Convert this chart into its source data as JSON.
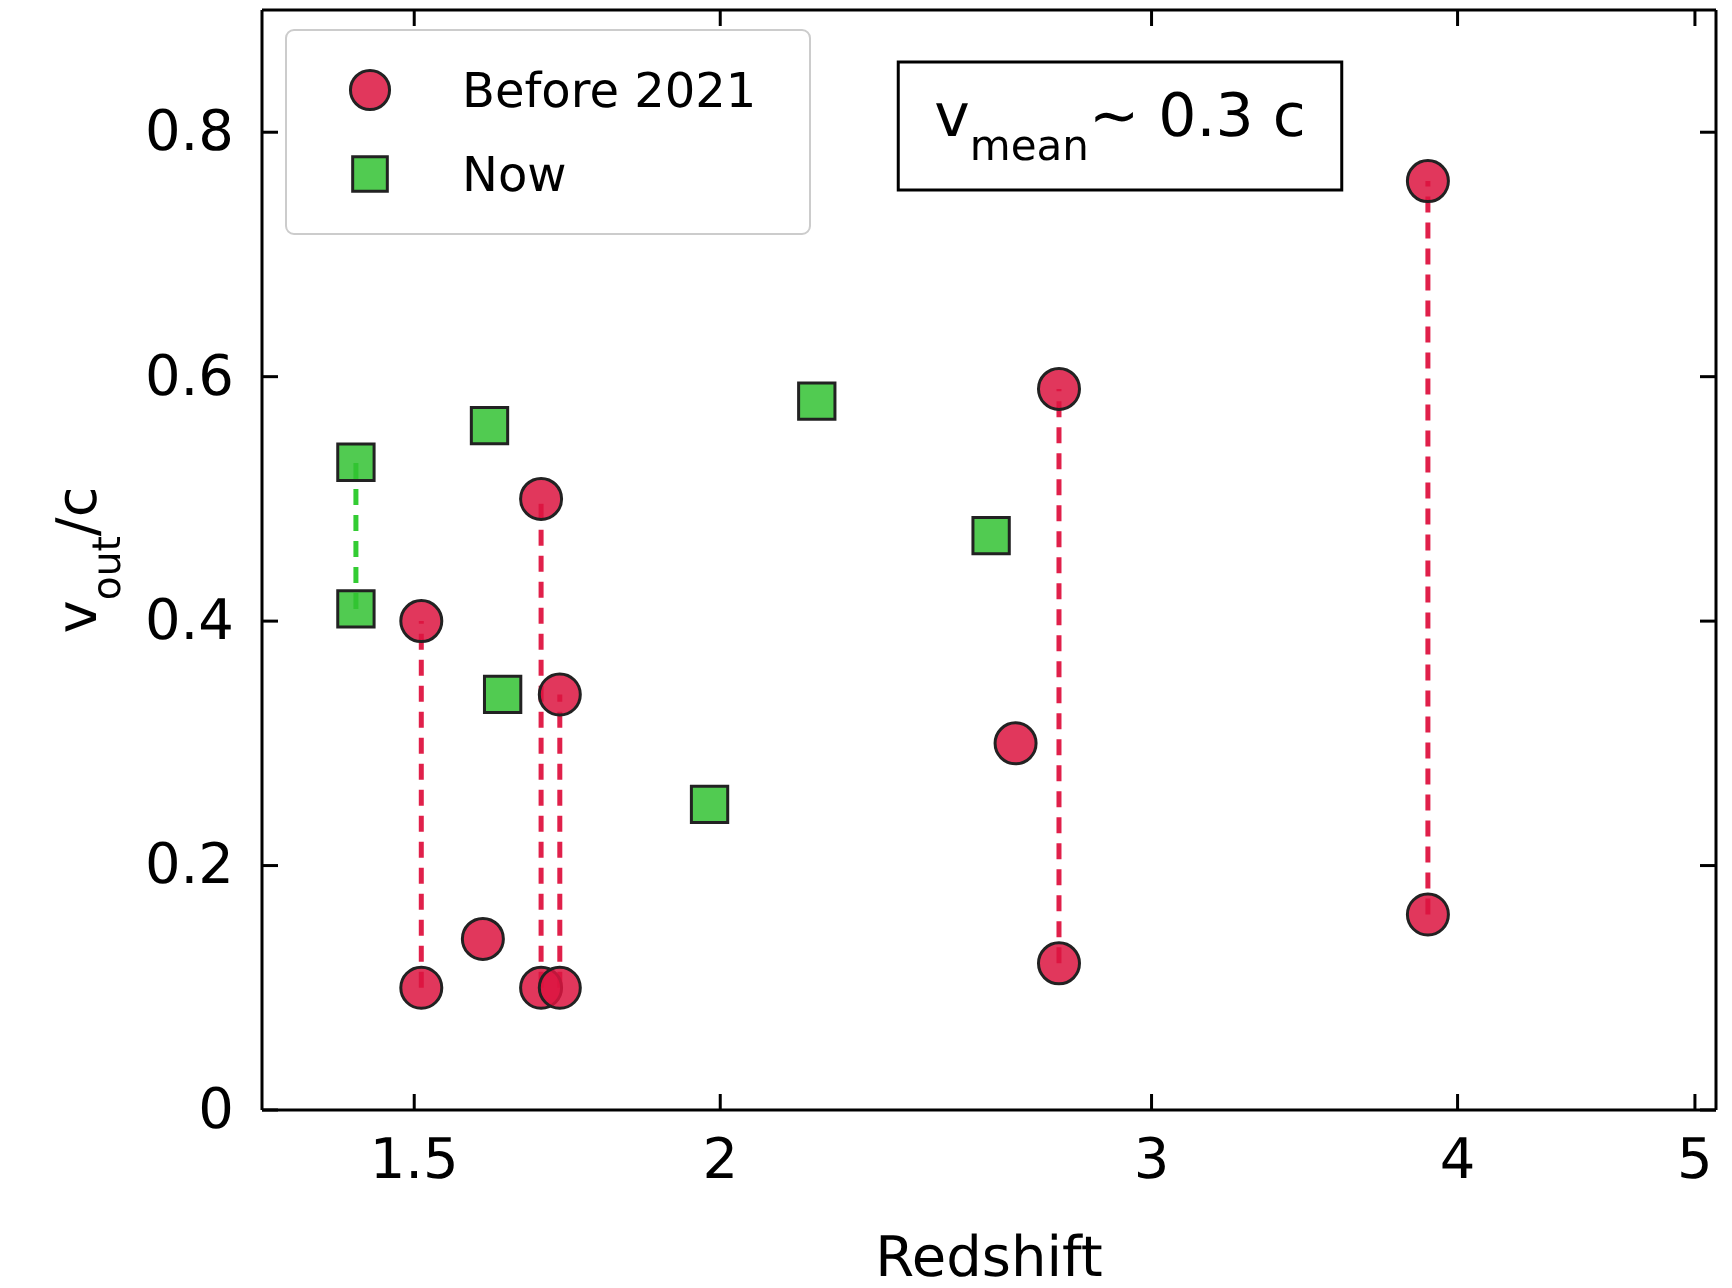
{
  "chart_data": {
    "type": "scatter",
    "xlabel": "Redshift",
    "ylabel": "v$_{out}$/c",
    "log": "x",
    "xlim": [
      1.3,
      5.1
    ],
    "ylim": [
      0,
      0.9
    ],
    "xticks": [
      1.5,
      2,
      3,
      4,
      5
    ],
    "yticks": [
      0,
      0.2,
      0.4,
      0.6,
      0.8
    ],
    "grid": false,
    "legend": "top left",
    "annotations": [
      "v$_{mean}$~ 0.3 c"
    ],
    "series": [
      {
        "type": "line",
        "line_style": "dashed",
        "marker": "none",
        "color": "#e0204a",
        "x": [
          1.51,
          1.51
        ],
        "values": [
          0.1,
          0.4
        ]
      },
      {
        "type": "line",
        "line_style": "dashed",
        "marker": "none",
        "color": "#e0204a",
        "x": [
          1.69,
          1.69
        ],
        "values": [
          0.1,
          0.5
        ]
      },
      {
        "type": "line",
        "line_style": "dashed",
        "marker": "none",
        "color": "#e0204a",
        "x": [
          1.72,
          1.72
        ],
        "values": [
          0.1,
          0.34
        ]
      },
      {
        "type": "line",
        "line_style": "dashed",
        "marker": "none",
        "color": "#e0204a",
        "x": [
          2.75,
          2.75
        ],
        "values": [
          0.12,
          0.59
        ]
      },
      {
        "type": "line",
        "line_style": "dashed",
        "marker": "none",
        "color": "#e0204a",
        "x": [
          3.89,
          3.89
        ],
        "values": [
          0.16,
          0.76
        ]
      },
      {
        "type": "line",
        "line_style": "dashed",
        "marker": "none",
        "color": "#33cc33",
        "x": [
          1.42,
          1.42
        ],
        "values": [
          0.41,
          0.53
        ]
      },
      {
        "name": "Before 2021",
        "marker": "circle",
        "color": "#dc1440",
        "x": [
          1.51,
          1.51,
          1.6,
          1.69,
          1.69,
          1.72,
          1.72,
          2.64,
          2.75,
          2.75,
          3.89,
          3.89
        ],
        "values": [
          0.4,
          0.1,
          0.14,
          0.5,
          0.1,
          0.34,
          0.1,
          0.3,
          0.59,
          0.12,
          0.76,
          0.16
        ]
      },
      {
        "name": "Now",
        "marker": "square",
        "color": "#33c233",
        "x": [
          1.42,
          1.42,
          1.61,
          1.63,
          1.98,
          2.19,
          2.58
        ],
        "values": [
          0.53,
          0.41,
          0.56,
          0.34,
          0.25,
          0.58,
          0.47
        ]
      }
    ]
  }
}
